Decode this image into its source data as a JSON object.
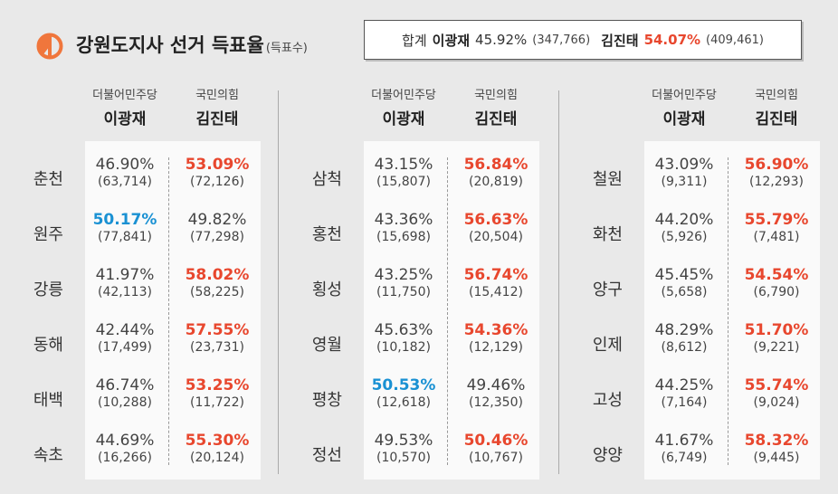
{
  "header": {
    "title": "강원도지사 선거 득표율",
    "subtitle": "(득표수)",
    "summary": {
      "label": "합계",
      "candidate1": {
        "name": "이광재",
        "pct": "45.92%",
        "count": "(347,766)"
      },
      "candidate2": {
        "name": "김진태",
        "pct": "54.07%",
        "count": "(409,461)"
      }
    }
  },
  "columns": {
    "party1": "더불어민주당",
    "cand1": "이광재",
    "party2": "국민의힘",
    "cand2": "김진태"
  },
  "colors": {
    "red": "#e8472e",
    "blue": "#1a91d3",
    "logo": "#f0763c"
  },
  "sections": [
    {
      "rows": [
        {
          "city": "춘천",
          "p1": "46.90%",
          "c1": "(63,714)",
          "p2": "53.09%",
          "c2": "(72,126)",
          "winner": 2
        },
        {
          "city": "원주",
          "p1": "50.17%",
          "c1": "(77,841)",
          "p2": "49.82%",
          "c2": "(77,298)",
          "winner": 1
        },
        {
          "city": "강릉",
          "p1": "41.97%",
          "c1": "(42,113)",
          "p2": "58.02%",
          "c2": "(58,225)",
          "winner": 2
        },
        {
          "city": "동해",
          "p1": "42.44%",
          "c1": "(17,499)",
          "p2": "57.55%",
          "c2": "(23,731)",
          "winner": 2
        },
        {
          "city": "태백",
          "p1": "46.74%",
          "c1": "(10,288)",
          "p2": "53.25%",
          "c2": "(11,722)",
          "winner": 2
        },
        {
          "city": "속초",
          "p1": "44.69%",
          "c1": "(16,266)",
          "p2": "55.30%",
          "c2": "(20,124)",
          "winner": 2
        }
      ]
    },
    {
      "rows": [
        {
          "city": "삼척",
          "p1": "43.15%",
          "c1": "(15,807)",
          "p2": "56.84%",
          "c2": "(20,819)",
          "winner": 2
        },
        {
          "city": "홍천",
          "p1": "43.36%",
          "c1": "(15,698)",
          "p2": "56.63%",
          "c2": "(20,504)",
          "winner": 2
        },
        {
          "city": "횡성",
          "p1": "43.25%",
          "c1": "(11,750)",
          "p2": "56.74%",
          "c2": "(15,412)",
          "winner": 2
        },
        {
          "city": "영월",
          "p1": "45.63%",
          "c1": "(10,182)",
          "p2": "54.36%",
          "c2": "(12,129)",
          "winner": 2
        },
        {
          "city": "평창",
          "p1": "50.53%",
          "c1": "(12,618)",
          "p2": "49.46%",
          "c2": "(12,350)",
          "winner": 1
        },
        {
          "city": "정선",
          "p1": "49.53%",
          "c1": "(10,570)",
          "p2": "50.46%",
          "c2": "(10,767)",
          "winner": 2
        }
      ]
    },
    {
      "rows": [
        {
          "city": "철원",
          "p1": "43.09%",
          "c1": "(9,311)",
          "p2": "56.90%",
          "c2": "(12,293)",
          "winner": 2
        },
        {
          "city": "화천",
          "p1": "44.20%",
          "c1": "(5,926)",
          "p2": "55.79%",
          "c2": "(7,481)",
          "winner": 2
        },
        {
          "city": "양구",
          "p1": "45.45%",
          "c1": "(5,658)",
          "p2": "54.54%",
          "c2": "(6,790)",
          "winner": 2
        },
        {
          "city": "인제",
          "p1": "48.29%",
          "c1": "(8,612)",
          "p2": "51.70%",
          "c2": "(9,221)",
          "winner": 2
        },
        {
          "city": "고성",
          "p1": "44.25%",
          "c1": "(7,164)",
          "p2": "55.74%",
          "c2": "(9,024)",
          "winner": 2
        },
        {
          "city": "양양",
          "p1": "41.67%",
          "c1": "(6,749)",
          "p2": "58.32%",
          "c2": "(9,445)",
          "winner": 2
        }
      ]
    }
  ]
}
